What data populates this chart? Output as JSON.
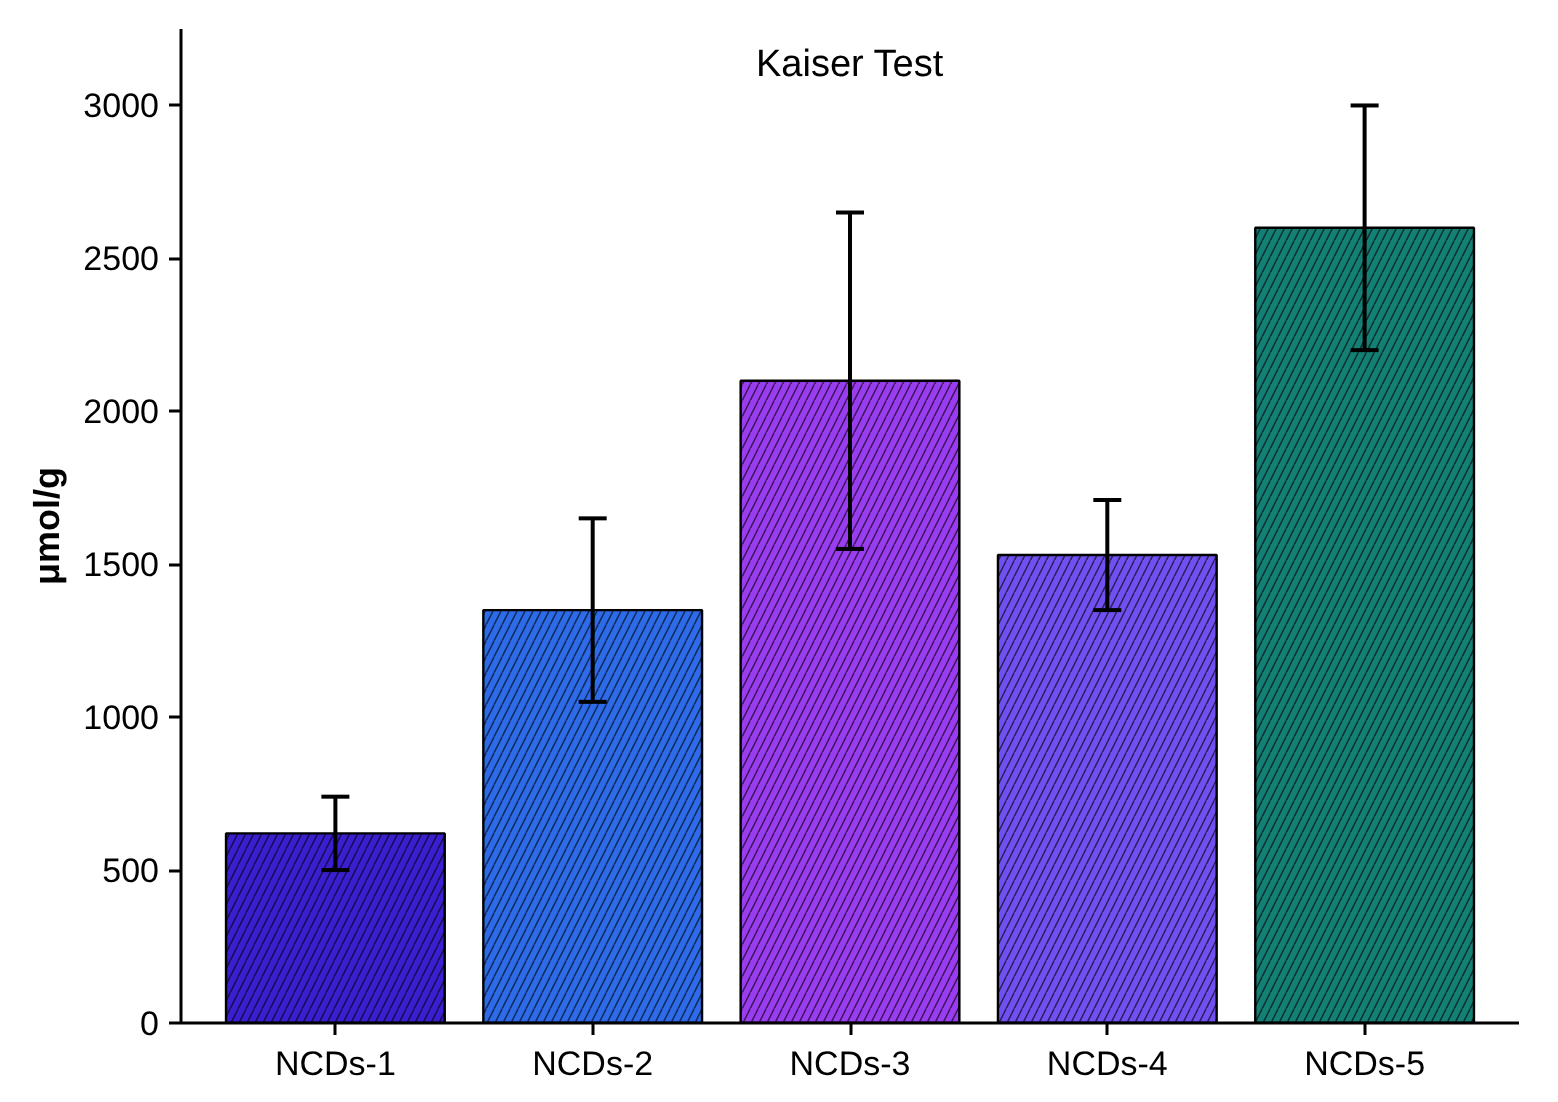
{
  "chart_data": {
    "type": "bar",
    "title": "Kaiser Test",
    "ylabel": "μmol/g",
    "categories": [
      "NCDs-1",
      "NCDs-2",
      "NCDs-3",
      "NCDs-4",
      "NCDs-5"
    ],
    "values": [
      620,
      1350,
      2100,
      1530,
      2600
    ],
    "errors": [
      120,
      300,
      550,
      180,
      400
    ],
    "colors": [
      "#3a1fd0",
      "#2e6be8",
      "#9a3cf0",
      "#7050f0",
      "#148075"
    ],
    "ylim": [
      0,
      3250
    ],
    "yticks": [
      0,
      500,
      1000,
      1500,
      2000,
      2500,
      3000
    ],
    "grid": false
  }
}
